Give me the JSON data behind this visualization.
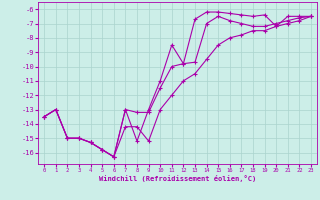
{
  "xlabel": "Windchill (Refroidissement éolien,°C)",
  "bg_color": "#cceee8",
  "grid_color": "#aad4ce",
  "line_color": "#aa00aa",
  "xlim": [
    -0.5,
    23.5
  ],
  "ylim": [
    -16.8,
    -5.5
  ],
  "yticks": [
    -6,
    -7,
    -8,
    -9,
    -10,
    -11,
    -12,
    -13,
    -14,
    -15,
    -16
  ],
  "xticks": [
    0,
    1,
    2,
    3,
    4,
    5,
    6,
    7,
    8,
    9,
    10,
    11,
    12,
    13,
    14,
    15,
    16,
    17,
    18,
    19,
    20,
    21,
    22,
    23
  ],
  "series": [
    {
      "x": [
        0,
        1,
        2,
        3,
        4,
        5,
        6,
        7,
        8,
        9,
        10,
        11,
        12,
        13,
        14,
        15,
        16,
        17,
        18,
        19,
        20,
        21,
        22,
        23
      ],
      "y": [
        -13.5,
        -13.0,
        -15.0,
        -15.0,
        -15.3,
        -15.8,
        -16.3,
        -13.0,
        -15.2,
        -13.0,
        -11.0,
        -8.5,
        -9.8,
        -6.7,
        -6.2,
        -6.2,
        -6.3,
        -6.4,
        -6.5,
        -6.4,
        -7.2,
        -6.5,
        -6.5,
        -6.5
      ]
    },
    {
      "x": [
        0,
        1,
        2,
        3,
        4,
        5,
        6,
        7,
        8,
        9,
        10,
        11,
        12,
        13,
        14,
        15,
        16,
        17,
        18,
        19,
        20,
        21,
        22,
        23
      ],
      "y": [
        -13.5,
        -13.0,
        -15.0,
        -15.0,
        -15.3,
        -15.8,
        -16.3,
        -13.0,
        -13.2,
        -13.2,
        -11.5,
        -10.0,
        -9.8,
        -9.7,
        -7.0,
        -6.5,
        -6.8,
        -7.0,
        -7.2,
        -7.2,
        -7.0,
        -6.8,
        -6.6,
        -6.5
      ]
    },
    {
      "x": [
        0,
        1,
        2,
        3,
        4,
        5,
        6,
        7,
        8,
        9,
        10,
        11,
        12,
        13,
        14,
        15,
        16,
        17,
        18,
        19,
        20,
        21,
        22,
        23
      ],
      "y": [
        -13.5,
        -13.0,
        -15.0,
        -15.0,
        -15.3,
        -15.8,
        -16.3,
        -14.2,
        -14.2,
        -15.2,
        -13.0,
        -12.0,
        -11.0,
        -10.5,
        -9.5,
        -8.5,
        -8.0,
        -7.8,
        -7.5,
        -7.5,
        -7.2,
        -7.0,
        -6.8,
        -6.5
      ]
    }
  ]
}
